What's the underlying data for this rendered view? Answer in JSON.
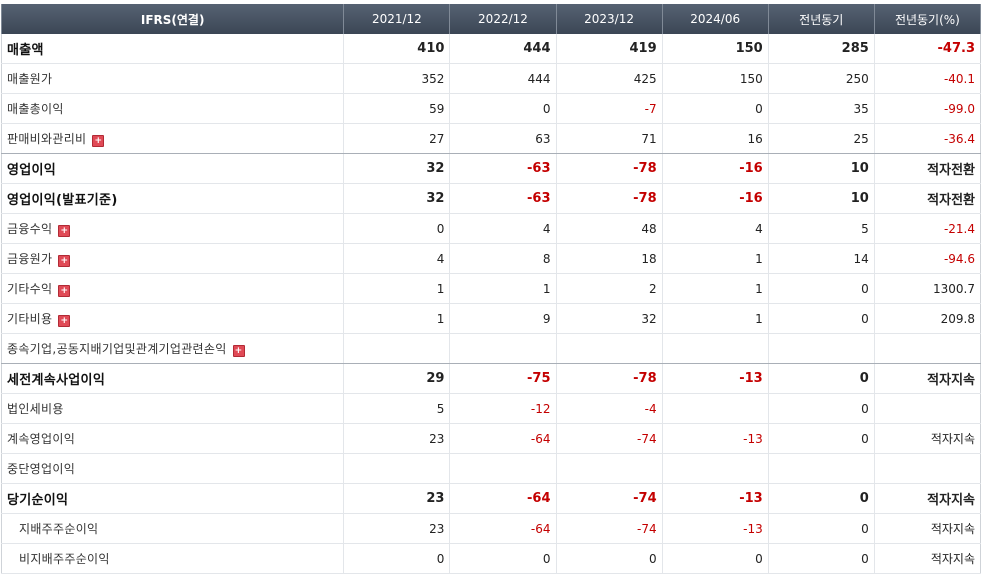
{
  "header": {
    "label": "IFRS(연결)",
    "columns": [
      "2021/12",
      "2022/12",
      "2023/12",
      "2024/06",
      "전년동기",
      "전년동기(%)"
    ]
  },
  "rows": [
    {
      "label": "매출액",
      "bold": true,
      "sep": false,
      "expand": false,
      "sub": false,
      "values": [
        "410",
        "444",
        "419",
        "150",
        "285",
        "-47.3"
      ]
    },
    {
      "label": "매출원가",
      "bold": false,
      "sep": false,
      "expand": false,
      "sub": false,
      "values": [
        "352",
        "444",
        "425",
        "150",
        "250",
        "-40.1"
      ]
    },
    {
      "label": "매출총이익",
      "bold": false,
      "sep": false,
      "expand": false,
      "sub": false,
      "values": [
        "59",
        "0",
        "-7",
        "0",
        "35",
        "-99.0"
      ]
    },
    {
      "label": "판매비와관리비",
      "bold": false,
      "sep": true,
      "expand": true,
      "sub": false,
      "values": [
        "27",
        "63",
        "71",
        "16",
        "25",
        "-36.4"
      ]
    },
    {
      "label": "영업이익",
      "bold": true,
      "sep": false,
      "expand": false,
      "sub": false,
      "values": [
        "32",
        "-63",
        "-78",
        "-16",
        "10",
        "적자전환"
      ]
    },
    {
      "label": "영업이익(발표기준)",
      "bold": true,
      "sep": false,
      "expand": false,
      "sub": false,
      "values": [
        "32",
        "-63",
        "-78",
        "-16",
        "10",
        "적자전환"
      ]
    },
    {
      "label": "금융수익",
      "bold": false,
      "sep": false,
      "expand": true,
      "sub": false,
      "values": [
        "0",
        "4",
        "48",
        "4",
        "5",
        "-21.4"
      ]
    },
    {
      "label": "금융원가",
      "bold": false,
      "sep": false,
      "expand": true,
      "sub": false,
      "values": [
        "4",
        "8",
        "18",
        "1",
        "14",
        "-94.6"
      ]
    },
    {
      "label": "기타수익",
      "bold": false,
      "sep": false,
      "expand": true,
      "sub": false,
      "values": [
        "1",
        "1",
        "2",
        "1",
        "0",
        "1300.7"
      ]
    },
    {
      "label": "기타비용",
      "bold": false,
      "sep": false,
      "expand": true,
      "sub": false,
      "values": [
        "1",
        "9",
        "32",
        "1",
        "0",
        "209.8"
      ]
    },
    {
      "label": "종속기업,공동지배기업및관계기업관련손익",
      "bold": false,
      "sep": true,
      "expand": true,
      "sub": false,
      "values": [
        "",
        "",
        "",
        "",
        "",
        ""
      ]
    },
    {
      "label": "세전계속사업이익",
      "bold": true,
      "sep": false,
      "expand": false,
      "sub": false,
      "values": [
        "29",
        "-75",
        "-78",
        "-13",
        "0",
        "적자지속"
      ]
    },
    {
      "label": "법인세비용",
      "bold": false,
      "sep": false,
      "expand": false,
      "sub": false,
      "values": [
        "5",
        "-12",
        "-4",
        "",
        "0",
        ""
      ]
    },
    {
      "label": "계속영업이익",
      "bold": false,
      "sep": false,
      "expand": false,
      "sub": false,
      "values": [
        "23",
        "-64",
        "-74",
        "-13",
        "0",
        "적자지속"
      ]
    },
    {
      "label": "중단영업이익",
      "bold": false,
      "sep": false,
      "expand": false,
      "sub": false,
      "values": [
        "",
        "",
        "",
        "",
        "",
        ""
      ]
    },
    {
      "label": "당기순이익",
      "bold": true,
      "sep": false,
      "expand": false,
      "sub": false,
      "values": [
        "23",
        "-64",
        "-74",
        "-13",
        "0",
        "적자지속"
      ]
    },
    {
      "label": "지배주주순이익",
      "bold": false,
      "sep": false,
      "expand": false,
      "sub": true,
      "values": [
        "23",
        "-64",
        "-74",
        "-13",
        "0",
        "적자지속"
      ]
    },
    {
      "label": "비지배주주순이익",
      "bold": false,
      "sep": false,
      "expand": false,
      "sub": true,
      "values": [
        "0",
        "0",
        "0",
        "0",
        "0",
        "적자지속"
      ]
    }
  ],
  "icons": {
    "expand": "plus-expand-icon"
  },
  "colors": {
    "header_bg": "#46515f",
    "negative": "#c40000"
  }
}
